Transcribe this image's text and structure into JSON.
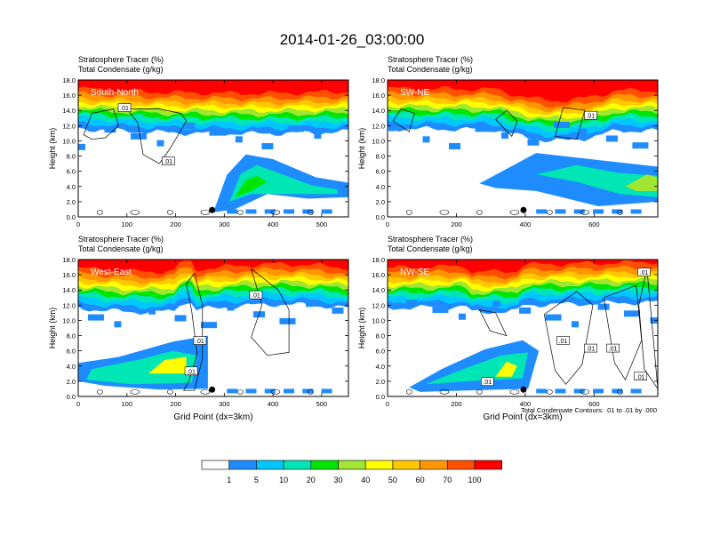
{
  "figure": {
    "title": "2014-01-26_03:00:00",
    "contour_note": "Total Condensate Contours: .01 to .01 by .000",
    "xlabel": "Grid Point (dx=3km)"
  },
  "colorbar": {
    "labels": [
      "1",
      "5",
      "10",
      "20",
      "30",
      "40",
      "50",
      "60",
      "70",
      "100"
    ],
    "colors": [
      "#ffffff",
      "#1e8cff",
      "#00c8ff",
      "#00e6b4",
      "#00e600",
      "#a0e632",
      "#ffff00",
      "#ffc800",
      "#ff9600",
      "#ff5000",
      "#ff0000"
    ]
  },
  "chart_data": [
    {
      "type": "heatmap",
      "label": "South-North",
      "header1": "Stratosphere Tracer   (%)",
      "header2": "Total Condensate   (g/kg)",
      "ylabel": "Height (km)",
      "xlabel": "",
      "xlim": [
        0,
        555
      ],
      "ylim": [
        0,
        18
      ],
      "xticks": [
        0,
        100,
        200,
        300,
        400,
        500
      ],
      "yticks": [
        0.0,
        2.0,
        4.0,
        6.0,
        8.0,
        10.0,
        12.0,
        14.0,
        16.0,
        18.0
      ],
      "marker": {
        "x": 275,
        "y": 0.9
      },
      "contour_labels": [
        {
          "x": 95,
          "y": 14.3,
          "text": ".01"
        },
        {
          "x": 185,
          "y": 7.3,
          "text": ".01"
        }
      ]
    },
    {
      "type": "heatmap",
      "label": "SW-NE",
      "header1": "Stratosphere Tracer   (%)",
      "header2": "Total Condensate   (g/kg)",
      "ylabel": "Height (km)",
      "xlabel": "",
      "xlim": [
        0,
        785
      ],
      "ylim": [
        0,
        18
      ],
      "xticks": [
        0,
        200,
        400,
        600
      ],
      "yticks": [
        0.0,
        2.0,
        4.0,
        6.0,
        8.0,
        10.0,
        12.0,
        14.0,
        16.0,
        18.0
      ],
      "marker": {
        "x": 395,
        "y": 0.9
      },
      "contour_labels": [
        {
          "x": 590,
          "y": 13.3,
          "text": ".01"
        }
      ]
    },
    {
      "type": "heatmap",
      "label": "West-East",
      "header1": "Stratosphere Tracer   (%)",
      "header2": "Total Condensate   (g/kg)",
      "ylabel": "Height (km)",
      "xlabel": "Grid Point (dx=3km)",
      "xlim": [
        0,
        555
      ],
      "ylim": [
        0,
        18
      ],
      "xticks": [
        0,
        100,
        200,
        300,
        400,
        500
      ],
      "yticks": [
        0.0,
        2.0,
        4.0,
        6.0,
        8.0,
        10.0,
        12.0,
        14.0,
        16.0,
        18.0
      ],
      "marker": {
        "x": 275,
        "y": 0.9
      },
      "contour_labels": [
        {
          "x": 365,
          "y": 13.3,
          "text": ".01"
        },
        {
          "x": 250,
          "y": 7.3,
          "text": ".01"
        },
        {
          "x": 232,
          "y": 3.3,
          "text": ".01"
        }
      ]
    },
    {
      "type": "heatmap",
      "label": "NW-SE",
      "header1": "Stratosphere Tracer   (%)",
      "header2": "Total Condensate   (g/kg)",
      "ylabel": "Height (km)",
      "xlabel": "Grid Point (dx=3km)",
      "xlim": [
        0,
        785
      ],
      "ylim": [
        0,
        18
      ],
      "xticks": [
        0,
        200,
        400,
        600
      ],
      "yticks": [
        0.0,
        2.0,
        4.0,
        6.0,
        8.0,
        10.0,
        12.0,
        14.0,
        16.0,
        18.0
      ],
      "marker": {
        "x": 395,
        "y": 0.9
      },
      "contour_labels": [
        {
          "x": 745,
          "y": 16.3,
          "text": ".01"
        },
        {
          "x": 510,
          "y": 7.3,
          "text": ".01"
        },
        {
          "x": 590,
          "y": 6.3,
          "text": ".01"
        },
        {
          "x": 655,
          "y": 6.3,
          "text": ".01"
        },
        {
          "x": 290,
          "y": 1.9,
          "text": ".01"
        },
        {
          "x": 735,
          "y": 2.6,
          "text": ".01"
        }
      ]
    }
  ]
}
